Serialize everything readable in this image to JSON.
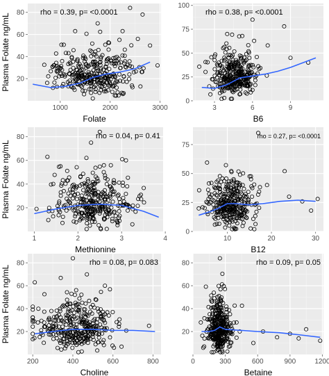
{
  "colors": {
    "panel_background": "#ebebeb",
    "grid_major": "#ffffff",
    "grid_minor": "#f5f5f5",
    "points": "#000000",
    "smooth_line": "#3366ff",
    "axis_text": "#4d4d4d",
    "title_text": "#000000"
  },
  "chart_data": [
    {
      "type": "scatter",
      "xlabel": "Folate",
      "ylabel": "Plasma Folate ng/mL",
      "annotation": "rho = 0.39, p= <0.0001",
      "annotation_small": false,
      "annotation_anchor": "top-left",
      "grid": true,
      "xlim": [
        350,
        3020
      ],
      "ylim": [
        0,
        88
      ],
      "xticks": [
        1000,
        2000,
        3000
      ],
      "xtick_labels": [
        "1000",
        "2000",
        "3000"
      ],
      "yticks": [
        20,
        40,
        60,
        80
      ],
      "ytick_labels": [
        "20",
        "40",
        "60",
        "80"
      ],
      "smooth": {
        "x": [
          450,
          800,
          1100,
          1400,
          1650,
          1900,
          2200,
          2500,
          2800
        ],
        "y": [
          15,
          12,
          13,
          16,
          21,
          24,
          26,
          29,
          35
        ]
      },
      "cloud": {
        "center": [
          1650,
          23
        ],
        "spread": [
          390,
          9
        ],
        "count": 330,
        "seed": 11,
        "x_range": [
          400,
          2950
        ],
        "y_range": [
          2,
          80
        ]
      },
      "outliers": [
        [
          2400,
          84
        ],
        [
          2650,
          78
        ],
        [
          1300,
          63
        ],
        [
          2250,
          63
        ],
        [
          2800,
          50
        ],
        [
          1750,
          70
        ]
      ]
    },
    {
      "type": "scatter",
      "xlabel": "B6",
      "ylabel": "",
      "annotation": "rho = 0.38, p= <0.0001",
      "annotation_small": false,
      "annotation_anchor": "top-left",
      "grid": true,
      "xlim": [
        1.3,
        11.6
      ],
      "ylim": [
        0,
        102
      ],
      "xticks": [
        3,
        6,
        9
      ],
      "xtick_labels": [
        "3",
        "6",
        "9"
      ],
      "yticks": [
        0,
        25,
        50,
        75,
        100
      ],
      "ytick_labels": [
        "0",
        "25",
        "50",
        "75",
        "100"
      ],
      "smooth": {
        "x": [
          2,
          3,
          4,
          5,
          6,
          7,
          8,
          9,
          10,
          11
        ],
        "y": [
          14,
          13,
          17,
          24,
          26,
          28,
          31,
          35,
          40,
          45
        ]
      },
      "cloud": {
        "center": [
          4.6,
          25
        ],
        "spread": [
          0.9,
          11
        ],
        "count": 330,
        "seed": 22,
        "x_range": [
          1.8,
          9.5
        ],
        "y_range": [
          2,
          80
        ]
      },
      "outliers": [
        [
          6.0,
          85
        ],
        [
          8.5,
          78
        ],
        [
          7.2,
          58
        ],
        [
          9.0,
          45
        ],
        [
          10.4,
          40
        ],
        [
          4.0,
          70
        ]
      ]
    },
    {
      "type": "scatter",
      "xlabel": "Methionine",
      "ylabel": "Plasma Folate ng/mL",
      "annotation": "rho = 0.04, p= 0.41",
      "annotation_small": false,
      "annotation_anchor": "top-right",
      "grid": true,
      "xlim": [
        0.85,
        3.95
      ],
      "ylim": [
        0,
        88
      ],
      "xticks": [
        1,
        2,
        3,
        4
      ],
      "xtick_labels": [
        "1",
        "2",
        "3",
        "4"
      ],
      "yticks": [
        20,
        40,
        60,
        80
      ],
      "ytick_labels": [
        "20",
        "40",
        "60",
        "80"
      ],
      "smooth": {
        "x": [
          1.0,
          1.5,
          2.0,
          2.5,
          3.0,
          3.5,
          3.85
        ],
        "y": [
          15,
          19,
          22,
          23,
          22,
          17,
          12
        ]
      },
      "cloud": {
        "center": [
          2.35,
          22
        ],
        "spread": [
          0.45,
          10
        ],
        "count": 330,
        "seed": 33,
        "x_range": [
          1.05,
          3.8
        ],
        "y_range": [
          2,
          80
        ]
      },
      "outliers": [
        [
          2.5,
          84
        ],
        [
          2.3,
          75
        ],
        [
          1.3,
          63
        ],
        [
          3.1,
          60
        ],
        [
          1.6,
          55
        ]
      ]
    },
    {
      "type": "scatter",
      "xlabel": "B12",
      "ylabel": "",
      "annotation": "rho = 0.27, p= <0.0001",
      "annotation_small": true,
      "annotation_anchor": "top-right",
      "grid": true,
      "xlim": [
        2.2,
        31.8
      ],
      "ylim": [
        0,
        90
      ],
      "xticks": [
        10,
        20,
        30
      ],
      "xtick_labels": [
        "10",
        "20",
        "30"
      ],
      "yticks": [
        0,
        25,
        50,
        75
      ],
      "ytick_labels": [
        "0",
        "25",
        "50",
        "75"
      ],
      "smooth": {
        "x": [
          3.5,
          6,
          8,
          10,
          12,
          15,
          18,
          22,
          26,
          30
        ],
        "y": [
          14,
          17,
          20,
          24,
          24,
          23,
          24,
          26,
          27,
          26
        ]
      },
      "cloud": {
        "center": [
          10.5,
          22
        ],
        "spread": [
          2.6,
          10
        ],
        "count": 330,
        "seed": 44,
        "x_range": [
          3.5,
          25
        ],
        "y_range": [
          2,
          80
        ]
      },
      "outliers": [
        [
          17,
          85
        ],
        [
          23,
          52
        ],
        [
          19,
          40
        ],
        [
          30.5,
          28
        ],
        [
          24,
          30
        ],
        [
          27,
          26
        ],
        [
          29,
          18
        ]
      ]
    },
    {
      "type": "scatter",
      "xlabel": "Choline",
      "ylabel": "Plasma Folate ng/mL",
      "annotation": "rho = 0.08, p= 0.083",
      "annotation_small": false,
      "annotation_anchor": "top-right",
      "grid": true,
      "xlim": [
        175,
        840
      ],
      "ylim": [
        0,
        88
      ],
      "xticks": [
        200,
        400,
        600,
        800
      ],
      "xtick_labels": [
        "200",
        "400",
        "600",
        "800"
      ],
      "yticks": [
        20,
        40,
        60,
        80
      ],
      "ytick_labels": [
        "20",
        "40",
        "60",
        "80"
      ],
      "smooth": {
        "x": [
          210,
          300,
          400,
          500,
          600,
          700,
          810
        ],
        "y": [
          18,
          20,
          22,
          22,
          21,
          21,
          20
        ]
      },
      "cloud": {
        "center": [
          420,
          22
        ],
        "spread": [
          95,
          10
        ],
        "count": 340,
        "seed": 55,
        "x_range": [
          200,
          820
        ],
        "y_range": [
          2,
          80
        ]
      },
      "outliers": [
        [
          400,
          84
        ],
        [
          210,
          63
        ],
        [
          560,
          60
        ],
        [
          470,
          70
        ],
        [
          780,
          25
        ]
      ]
    },
    {
      "type": "scatter",
      "xlabel": "Betaine",
      "ylabel": "",
      "annotation": "rho = 0.09, p= 0.05",
      "annotation_small": false,
      "annotation_anchor": "top-right",
      "grid": true,
      "xlim": [
        0,
        1210
      ],
      "ylim": [
        0,
        88
      ],
      "xticks": [
        0,
        300,
        600,
        900,
        1200
      ],
      "xtick_labels": [
        "0",
        "300",
        "600",
        "900",
        "1200"
      ],
      "yticks": [
        20,
        40,
        60,
        80
      ],
      "ytick_labels": [
        "20",
        "40",
        "60",
        "80"
      ],
      "smooth": {
        "x": [
          80,
          150,
          200,
          250,
          300,
          450,
          600,
          800,
          1000,
          1180
        ],
        "y": [
          20,
          20,
          21,
          24,
          22,
          21,
          20,
          19,
          17,
          15
        ]
      },
      "cloud": {
        "center": [
          245,
          22
        ],
        "spread": [
          55,
          11
        ],
        "count": 350,
        "seed": 66,
        "x_range": [
          70,
          700
        ],
        "y_range": [
          2,
          84
        ]
      },
      "outliers": [
        [
          250,
          84
        ],
        [
          650,
          20
        ],
        [
          780,
          15
        ],
        [
          900,
          18
        ],
        [
          1050,
          22
        ],
        [
          1180,
          12
        ],
        [
          560,
          10
        ],
        [
          980,
          14
        ]
      ]
    }
  ]
}
